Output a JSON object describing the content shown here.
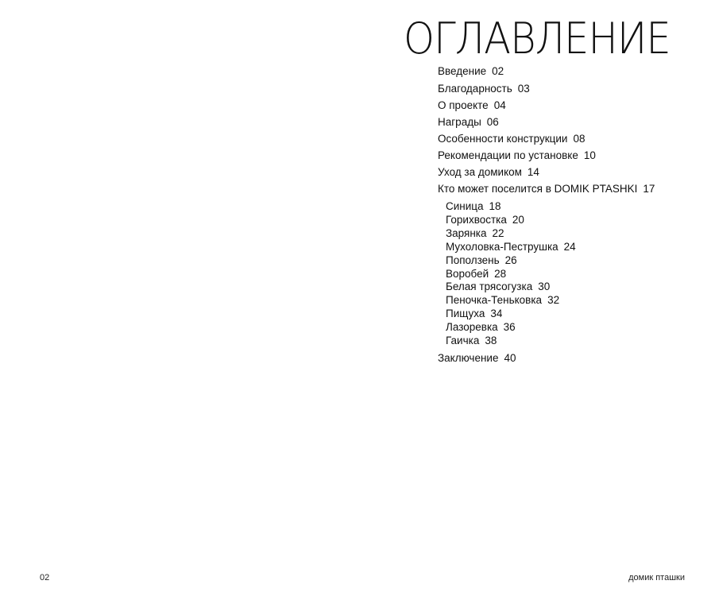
{
  "title": "ОГЛАВЛЕНИЕ",
  "toc": [
    {
      "label": "Введение",
      "page": "02"
    },
    {
      "label": "Благодарность",
      "page": "03"
    },
    {
      "label": "О проекте",
      "page": "04"
    },
    {
      "label": "Награды",
      "page": "06"
    },
    {
      "label": "Особенности конструкции",
      "page": "08"
    },
    {
      "label": "Рекомендации по установке",
      "page": "10"
    },
    {
      "label": "Уход за домиком",
      "page": "14"
    },
    {
      "label": "Кто может поселится в DOMIK PTASHKI",
      "page": "17"
    }
  ],
  "subitems": [
    {
      "label": "Синица",
      "page": "18"
    },
    {
      "label": "Горихвостка",
      "page": "20"
    },
    {
      "label": "Зарянка",
      "page": "22"
    },
    {
      "label": "Мухоловка-Пеструшка",
      "page": "24"
    },
    {
      "label": "Поползень",
      "page": "26"
    },
    {
      "label": "Воробей",
      "page": "28"
    },
    {
      "label": "Белая трясогузка",
      "page": "30"
    },
    {
      "label": "Пеночка-Теньковка",
      "page": "32"
    },
    {
      "label": "Пищуха",
      "page": "34"
    },
    {
      "label": "Лазоревка",
      "page": "36"
    },
    {
      "label": "Гаичка",
      "page": "38"
    }
  ],
  "final": {
    "label": "Заключение",
    "page": "40"
  },
  "footer": {
    "page_number": "02",
    "brand": "домик пташки"
  }
}
